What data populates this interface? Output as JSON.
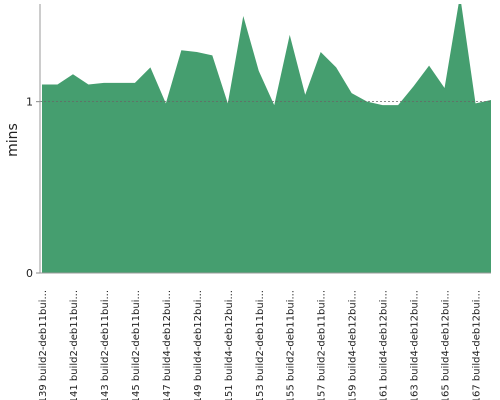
{
  "chart_data": {
    "type": "area",
    "y_label": "mins",
    "color": "#459e6f",
    "categories": [
      "#139 build2-deb11bui...",
      null,
      "#141 build2-deb11bui...",
      null,
      "#143 build2-deb11bui...",
      null,
      "#145 build2-deb11bui...",
      null,
      "#147 build4-deb12bui...",
      null,
      "#149 build4-deb12bui...",
      null,
      "#151 build4-deb12bui...",
      null,
      "#153 build2-deb11bui...",
      null,
      "#155 build2-deb11bui...",
      null,
      "#157 build2-deb11bui...",
      null,
      "#159 build4-deb12bui...",
      null,
      "#161 build4-deb12bui...",
      null,
      "#163 build4-deb12bui...",
      null,
      "#165 build4-deb12bui...",
      null,
      "#167 build4-deb12bui...",
      null
    ],
    "values": [
      1.1,
      1.1,
      1.16,
      1.1,
      1.11,
      1.11,
      1.11,
      1.2,
      0.99,
      1.3,
      1.29,
      1.27,
      0.99,
      1.5,
      1.18,
      0.98,
      1.39,
      1.04,
      1.29,
      1.2,
      1.05,
      1.0,
      0.98,
      0.98,
      1.09,
      1.21,
      1.08,
      1.62,
      0.99,
      1.01
    ],
    "ylim": [
      0,
      1.57
    ],
    "yticks": [
      0,
      1
    ],
    "grid": true
  }
}
